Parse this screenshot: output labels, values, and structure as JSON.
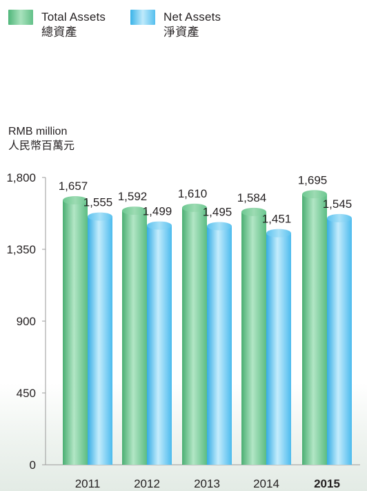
{
  "chart_data": {
    "type": "bar",
    "categories": [
      "2011",
      "2012",
      "2013",
      "2014",
      "2015"
    ],
    "highlighted_category": "2015",
    "series": [
      {
        "name": "Total Assets",
        "name_zh": "總資產",
        "color": "#7dcf9c",
        "values": [
          1657,
          1592,
          1610,
          1584,
          1695
        ]
      },
      {
        "name": "Net Assets",
        "name_zh": "淨資產",
        "color": "#6ccbf2",
        "values": [
          1555,
          1499,
          1495,
          1451,
          1545
        ]
      }
    ],
    "data_labels": [
      [
        "1,657",
        "1,592",
        "1,610",
        "1,584",
        "1,695"
      ],
      [
        "1,555",
        "1,499",
        "1,495",
        "1,451",
        "1,545"
      ]
    ],
    "ylabel": "RMB million",
    "ylabel_zh": "人民幣百萬元",
    "ylim": [
      0,
      1800
    ],
    "yticks": [
      0,
      450,
      900,
      1350,
      1800
    ],
    "ytick_labels": [
      "0",
      "450",
      "900",
      "1,350",
      "1,800"
    ],
    "legend_position": "top-left",
    "grid": false
  }
}
